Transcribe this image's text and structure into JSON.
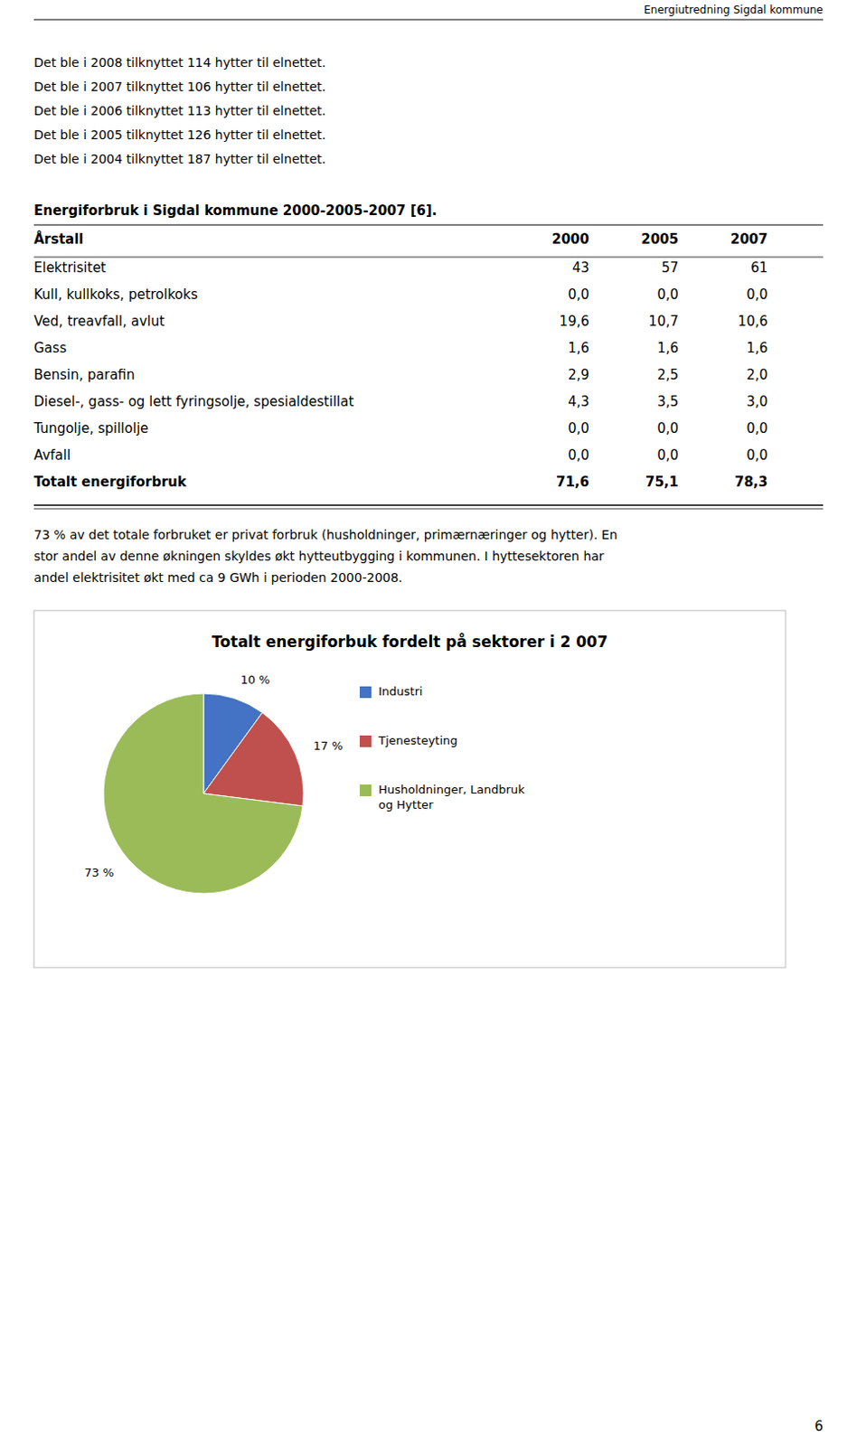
{
  "page": {
    "header_text": "Energiutredning Sigdal kommune",
    "page_number": "6",
    "bullet_lines": [
      "Det ble i 2008 tilknyttet 114 hytter til elnettet.",
      "Det ble i 2007 tilknyttet 106 hytter til elnettet.",
      "Det ble i 2006 tilknyttet 113 hytter til elnettet.",
      "Det ble i 2005 tilknyttet 126 hytter til elnettet.",
      "Det ble i 2004 tilknyttet 187 hytter til elnettet."
    ],
    "table": {
      "title": "Energiforbruk i Sigdal kommune 2000-2005-2007 [6].",
      "headers": [
        "Årstall",
        "2000",
        "2005",
        "2007"
      ],
      "rows": [
        [
          "Elektrisitet",
          "43",
          "57",
          "61"
        ],
        [
          "Kull, kullkoks, petrolkoks",
          "0,0",
          "0,0",
          "0,0"
        ],
        [
          "Ved, treavfall, avlut",
          "19,6",
          "10,7",
          "10,6"
        ],
        [
          "Gass",
          "1,6",
          "1,6",
          "1,6"
        ],
        [
          "Bensin, parafin",
          "2,9",
          "2,5",
          "2,0"
        ],
        [
          "Diesel-, gass- og lett fyringsolje, spesialdestillat",
          "4,3",
          "3,5",
          "3,0"
        ],
        [
          "Tungolje, spillolje",
          "0,0",
          "0,0",
          "0,0"
        ],
        [
          "Avfall",
          "0,0",
          "0,0",
          "0,0"
        ],
        [
          "Totalt energiforbruk",
          "71,6",
          "75,1",
          "78,3"
        ]
      ]
    },
    "paragraph_lines": [
      "73 % av det totale forbruket er privat forbruk (husholdninger, primærnæringer og hytter). En",
      "stor andel av denne økningen skyldes økt hytteutbygging i kommunen. I hyttesektoren har",
      "andel elektrisitet økt med ca 9 GWh i perioden 2000-2008."
    ]
  },
  "chart_data": {
    "type": "pie",
    "title": "Totalt energiforbuk fordelt på sektorer i 2 007",
    "categories": [
      "Industri",
      "Tjenesteyting",
      "Husholdninger, Landbruk\nog Hytter"
    ],
    "values": [
      10,
      17,
      73
    ],
    "value_labels": [
      "10 %",
      "17 %",
      "73 %"
    ],
    "colors": [
      "#4472C4",
      "#C0504D",
      "#9BBB59"
    ],
    "data_labels": true,
    "legend": "right"
  }
}
